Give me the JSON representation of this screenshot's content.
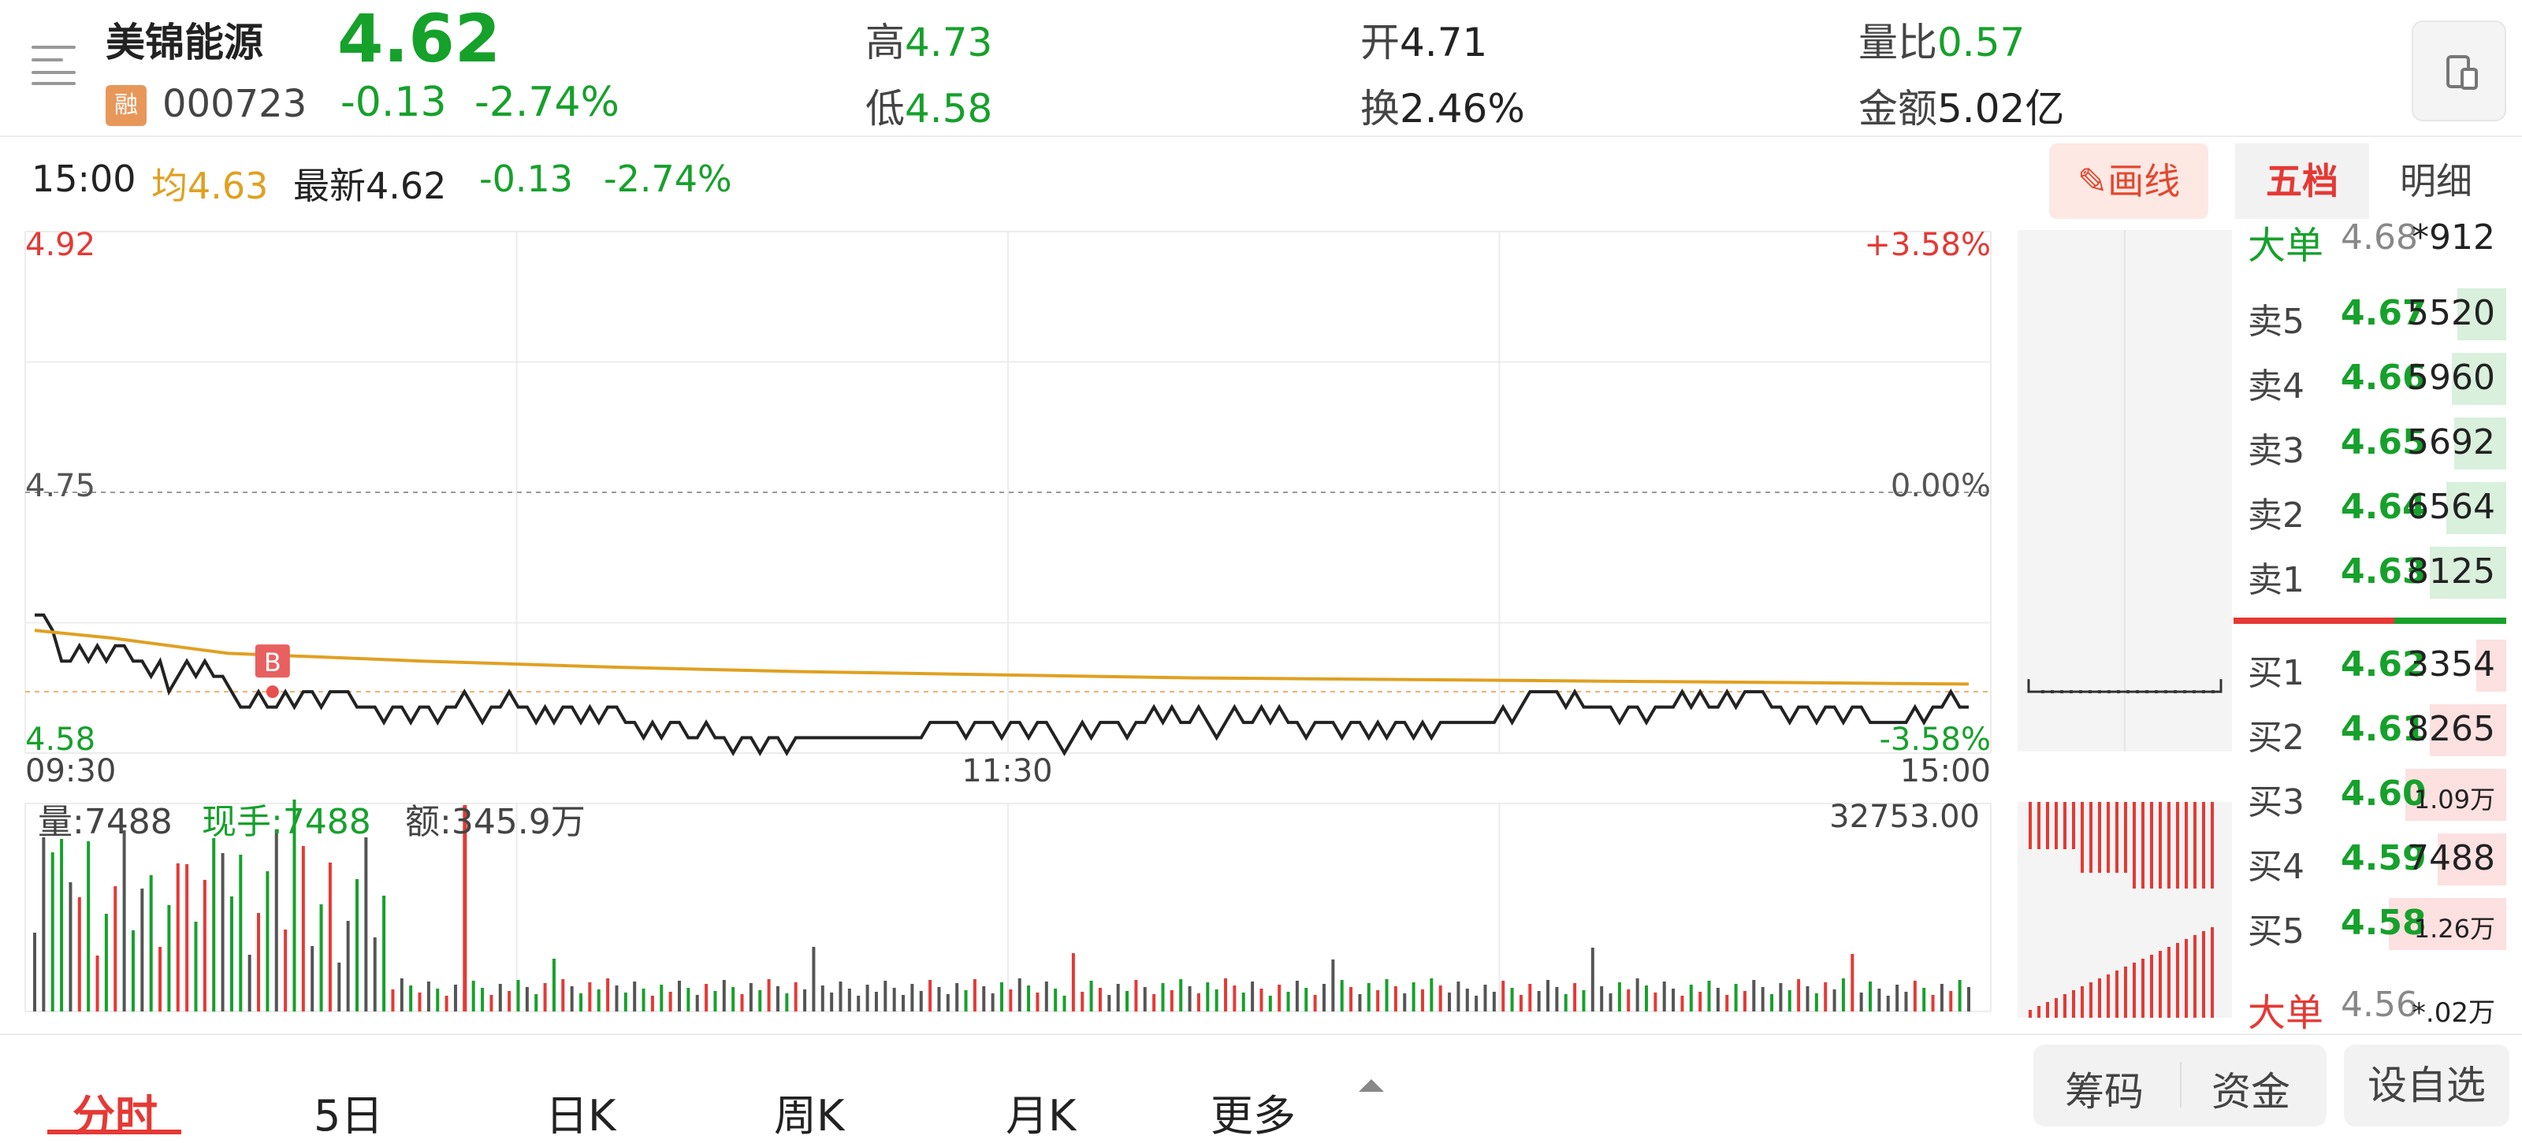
{
  "header": {
    "name": "美锦能源",
    "price": "4.62",
    "margin_badge": "融",
    "code": "000723",
    "change": "-0.13",
    "change_pct": "-2.74%",
    "stats": [
      {
        "label": "高",
        "value": "4.73",
        "color": "#16a12b"
      },
      {
        "label": "低",
        "value": "4.58",
        "color": "#16a12b"
      },
      {
        "label": "开",
        "value": "4.71",
        "color": "#222222"
      },
      {
        "label": "换",
        "value": "2.46%",
        "color": "#222222"
      },
      {
        "label": "量比",
        "value": "0.57",
        "color": "#16a12b"
      },
      {
        "label": "金额",
        "value": "5.02亿",
        "color": "#222222"
      }
    ]
  },
  "subheader": {
    "time": "15:00",
    "avg_label": "均",
    "avg_value": "4.63",
    "latest_label": "最新",
    "latest_value": "4.62",
    "change": "-0.13",
    "change_pct": "-2.74%",
    "draw_button": "画线"
  },
  "orderbook": {
    "tabs": [
      "五档",
      "明细"
    ],
    "big_top": {
      "label": "大单",
      "price": "4.68",
      "vol": "*912"
    },
    "sells": [
      {
        "label": "卖5",
        "price": "4.67",
        "vol": "5520",
        "fill": 0.18
      },
      {
        "label": "卖4",
        "price": "4.66",
        "vol": "5960",
        "fill": 0.2
      },
      {
        "label": "卖3",
        "price": "4.65",
        "vol": "5692",
        "fill": 0.19
      },
      {
        "label": "卖2",
        "price": "4.64",
        "vol": "6564",
        "fill": 0.22
      },
      {
        "label": "卖1",
        "price": "4.63",
        "vol": "8125",
        "fill": 0.28
      }
    ],
    "buys": [
      {
        "label": "买1",
        "price": "4.62",
        "vol": "3354",
        "fill": 0.11
      },
      {
        "label": "买2",
        "price": "4.61",
        "vol": "8265",
        "fill": 0.28
      },
      {
        "label": "买3",
        "price": "4.60",
        "vol": "1.09万",
        "fill": 0.37
      },
      {
        "label": "买4",
        "price": "4.59",
        "vol": "7488",
        "fill": 0.25
      },
      {
        "label": "买5",
        "price": "4.58",
        "vol": "1.26万",
        "fill": 0.43
      }
    ],
    "big_bottom": {
      "label": "大单",
      "price": "4.56",
      "vol": "*.02万"
    }
  },
  "chart_data": {
    "type": "line",
    "series": [],
    "price_axis": {
      "top": "4.92",
      "mid": "4.75",
      "bottom": "4.58",
      "ylim": [
        4.58,
        4.92
      ]
    },
    "pct_axis": {
      "top": "+3.58%",
      "mid": "0.00%",
      "bottom": "-3.58%"
    },
    "x_ticks": [
      "09:30",
      "11:30",
      "15:00"
    ],
    "price_line": [
      4.67,
      4.67,
      4.66,
      4.64,
      4.64,
      4.65,
      4.64,
      4.65,
      4.64,
      4.65,
      4.65,
      4.64,
      4.64,
      4.63,
      4.64,
      4.62,
      4.63,
      4.64,
      4.63,
      4.64,
      4.63,
      4.63,
      4.62,
      4.61,
      4.61,
      4.62,
      4.61,
      4.61,
      4.62,
      4.61,
      4.62,
      4.62,
      4.61,
      4.62,
      4.62,
      4.62,
      4.61,
      4.61,
      4.61,
      4.6,
      4.61,
      4.61,
      4.6,
      4.61,
      4.61,
      4.6,
      4.61,
      4.61,
      4.62,
      4.61,
      4.6,
      4.61,
      4.61,
      4.62,
      4.61,
      4.61,
      4.6,
      4.61,
      4.6,
      4.61,
      4.61,
      4.6,
      4.61,
      4.6,
      4.61,
      4.61,
      4.6,
      4.6,
      4.59,
      4.6,
      4.59,
      4.6,
      4.6,
      4.59,
      4.59,
      4.6,
      4.59,
      4.59,
      4.58,
      4.59,
      4.59,
      4.58,
      4.59,
      4.59,
      4.58,
      4.59,
      4.59,
      4.59,
      4.59,
      4.59,
      4.59,
      4.59,
      4.59,
      4.59,
      4.59,
      4.59,
      4.59,
      4.59,
      4.59,
      4.59,
      4.6,
      4.6,
      4.6,
      4.6,
      4.59,
      4.6,
      4.6,
      4.6,
      4.59,
      4.6,
      4.6,
      4.59,
      4.6,
      4.6,
      4.59,
      4.58,
      4.59,
      4.6,
      4.59,
      4.6,
      4.6,
      4.6,
      4.59,
      4.6,
      4.6,
      4.61,
      4.6,
      4.61,
      4.6,
      4.6,
      4.61,
      4.6,
      4.59,
      4.6,
      4.61,
      4.6,
      4.6,
      4.61,
      4.6,
      4.61,
      4.6,
      4.6,
      4.59,
      4.6,
      4.6,
      4.6,
      4.59,
      4.6,
      4.6,
      4.59,
      4.6,
      4.59,
      4.6,
      4.6,
      4.59,
      4.6,
      4.59,
      4.6,
      4.6,
      4.6,
      4.6,
      4.6,
      4.6,
      4.6,
      4.61,
      4.6,
      4.61,
      4.62,
      4.62,
      4.62,
      4.62,
      4.61,
      4.62,
      4.61,
      4.61,
      4.61,
      4.61,
      4.6,
      4.61,
      4.61,
      4.6,
      4.61,
      4.61,
      4.61,
      4.62,
      4.61,
      4.62,
      4.61,
      4.61,
      4.62,
      4.61,
      4.62,
      4.62,
      4.62,
      4.61,
      4.61,
      4.6,
      4.61,
      4.61,
      4.6,
      4.61,
      4.61,
      4.6,
      4.61,
      4.61,
      4.6,
      4.6,
      4.6,
      4.6,
      4.6,
      4.61,
      4.6,
      4.61,
      4.61,
      4.62,
      4.61,
      4.61
    ],
    "avg_line_points": [
      [
        0,
        4.66
      ],
      [
        0.04,
        4.655
      ],
      [
        0.1,
        4.645
      ],
      [
        0.2,
        4.64
      ],
      [
        0.3,
        4.636
      ],
      [
        0.4,
        4.633
      ],
      [
        0.5,
        4.631
      ],
      [
        0.6,
        4.629
      ],
      [
        0.7,
        4.628
      ],
      [
        0.8,
        4.627
      ],
      [
        0.9,
        4.626
      ],
      [
        1.0,
        4.625
      ]
    ],
    "b_marker": {
      "label": "B",
      "x_frac": 0.123,
      "price": 4.62
    },
    "volume": {
      "label": "量:7488",
      "hand_label": "现手:7488",
      "amount_label": "额:345.9万",
      "max": "32753.00",
      "bars": []
    },
    "side_ladder": {
      "level_price": 4.62
    }
  },
  "bottom_tabs": [
    "分时",
    "5日",
    "日K",
    "周K",
    "月K",
    "更多"
  ],
  "bottom_buttons": [
    "筹码",
    "资金",
    "设自选"
  ]
}
